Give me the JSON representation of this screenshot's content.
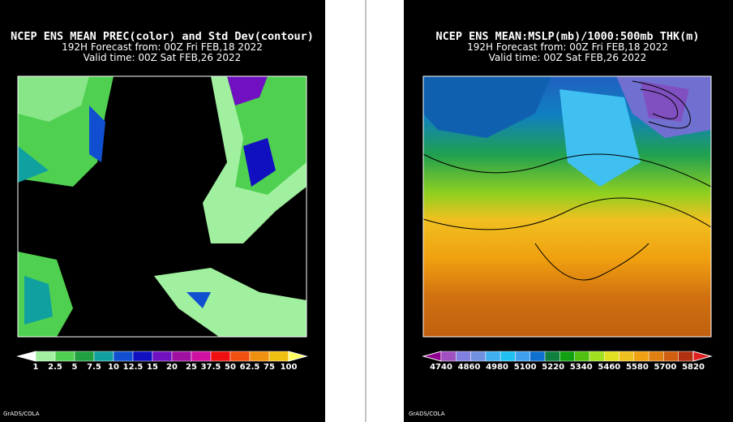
{
  "panels": [
    {
      "title": "NCEP ENS MEAN PREC(color) and Std Dev(contour)",
      "forecast": "192H Forecast from: 00Z Fri FEB,18 2022",
      "valid": "Valid time: 00Z Sat FEB,26 2022",
      "colorbar": {
        "labels": [
          "1",
          "2.5",
          "5",
          "7.5",
          "10",
          "12.5",
          "15",
          "20",
          "25",
          "37.5",
          "50",
          "62.5",
          "75",
          "100"
        ],
        "colors": [
          "#ffffff",
          "#a0f0a0",
          "#50d050",
          "#20a040",
          "#10a0a0",
          "#1050d0",
          "#1010c0",
          "#7010c0",
          "#a010a0",
          "#d010a0",
          "#f01010",
          "#f05010",
          "#f09010",
          "#f0c010",
          "#ffff60"
        ]
      },
      "credit": "GrADS/COLA"
    },
    {
      "title": "NCEP ENS MEAN:MSLP(mb)/1000:500mb THK(m)",
      "forecast": "192H Forecast from: 00Z Fri FEB,18 2022",
      "valid": "Valid time: 00Z Sat FEB,26 2022",
      "colorbar": {
        "labels": [
          "4740",
          "4860",
          "4980",
          "5100",
          "5220",
          "5340",
          "5460",
          "5580",
          "5700",
          "5820"
        ],
        "colors": [
          "#900090",
          "#a050c0",
          "#8080e0",
          "#7090e0",
          "#40b0f0",
          "#20c0f0",
          "#40a0f0",
          "#1070d0",
          "#108040",
          "#10a010",
          "#50c010",
          "#a0e020",
          "#e0e020",
          "#f0c020",
          "#f0a010",
          "#e08010",
          "#d06010",
          "#b03010",
          "#e02020"
        ]
      },
      "credit": "GrADS/COLA"
    }
  ]
}
